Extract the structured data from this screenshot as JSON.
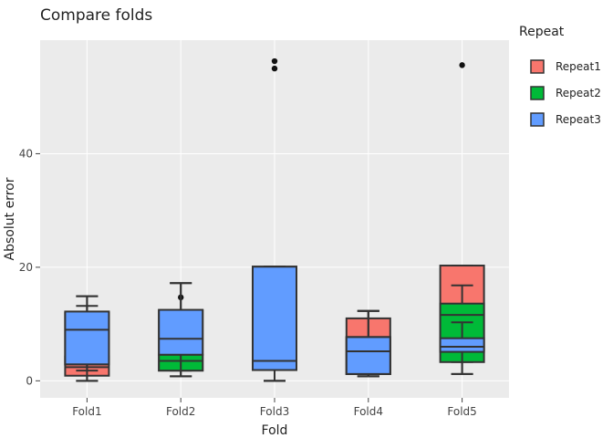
{
  "chart_data": {
    "type": "box",
    "title": "Compare folds",
    "xlabel": "Fold",
    "ylabel": "Absolut error",
    "ylim": [
      -3,
      60
    ],
    "yticks": [
      0,
      20,
      40
    ],
    "grid": true,
    "legend": {
      "title": "Repeat",
      "position": "right"
    },
    "categories": [
      "Fold1",
      "Fold2",
      "Fold3",
      "Fold4",
      "Fold5"
    ],
    "series": [
      {
        "name": "Repeat1",
        "color": "#F8766D",
        "boxes": [
          {
            "category": "Fold1",
            "min": 0.0,
            "q1": 0.9,
            "median": 2.4,
            "q3": 12.0,
            "max": 14.9,
            "outliers": []
          },
          {
            "category": "Fold2",
            "min": 0.8,
            "q1": 1.8,
            "median": 4.4,
            "q3": 12.4,
            "max": 17.2,
            "outliers": []
          },
          {
            "category": "Fold3",
            "min": 0.0,
            "q1": 1.9,
            "median": 3.5,
            "q3": 20.1,
            "max": 20.1,
            "outliers": [
              55.0,
              56.3
            ]
          },
          {
            "category": "Fold4",
            "min": 0.8,
            "q1": 1.2,
            "median": 7.7,
            "q3": 11.0,
            "max": 12.3,
            "outliers": []
          },
          {
            "category": "Fold5",
            "min": 1.2,
            "q1": 5.5,
            "median": 13.4,
            "q3": 20.3,
            "max": 20.3,
            "outliers": [
              55.6
            ]
          }
        ]
      },
      {
        "name": "Repeat2",
        "color": "#00BA38",
        "boxes": [
          {
            "category": "Fold1",
            "min": 1.8,
            "q1": 2.9,
            "median": 4.2,
            "q3": 4.3,
            "max": 13.2,
            "outliers": []
          },
          {
            "category": "Fold2",
            "min": 1.8,
            "q1": 1.8,
            "median": 3.5,
            "q3": 4.6,
            "max": 7.4,
            "outliers": [
              14.7
            ]
          },
          {
            "category": "Fold3",
            "min": 0.0,
            "q1": 1.9,
            "median": 3.5,
            "q3": 20.1,
            "max": 20.1,
            "outliers": []
          },
          {
            "category": "Fold4",
            "min": 0.8,
            "q1": 1.2,
            "median": 5.2,
            "q3": 7.7,
            "max": 12.3,
            "outliers": []
          },
          {
            "category": "Fold5",
            "min": 3.3,
            "q1": 3.3,
            "median": 11.6,
            "q3": 13.6,
            "max": 16.8,
            "outliers": []
          }
        ]
      },
      {
        "name": "Repeat3",
        "color": "#619CFF",
        "boxes": [
          {
            "category": "Fold1",
            "min": 0.0,
            "q1": 2.9,
            "median": 9.0,
            "q3": 12.2,
            "max": 14.9,
            "outliers": []
          },
          {
            "category": "Fold2",
            "min": 0.8,
            "q1": 4.6,
            "median": 7.4,
            "q3": 12.5,
            "max": 17.2,
            "outliers": []
          },
          {
            "category": "Fold3",
            "min": 0.0,
            "q1": 1.9,
            "median": 3.5,
            "q3": 20.1,
            "max": 20.1,
            "outliers": []
          },
          {
            "category": "Fold4",
            "min": 0.8,
            "q1": 1.2,
            "median": 5.2,
            "q3": 7.7,
            "max": 12.3,
            "outliers": []
          },
          {
            "category": "Fold5",
            "min": 1.2,
            "q1": 5.1,
            "median": 6.0,
            "q3": 7.5,
            "max": 10.3,
            "outliers": []
          }
        ]
      }
    ]
  }
}
